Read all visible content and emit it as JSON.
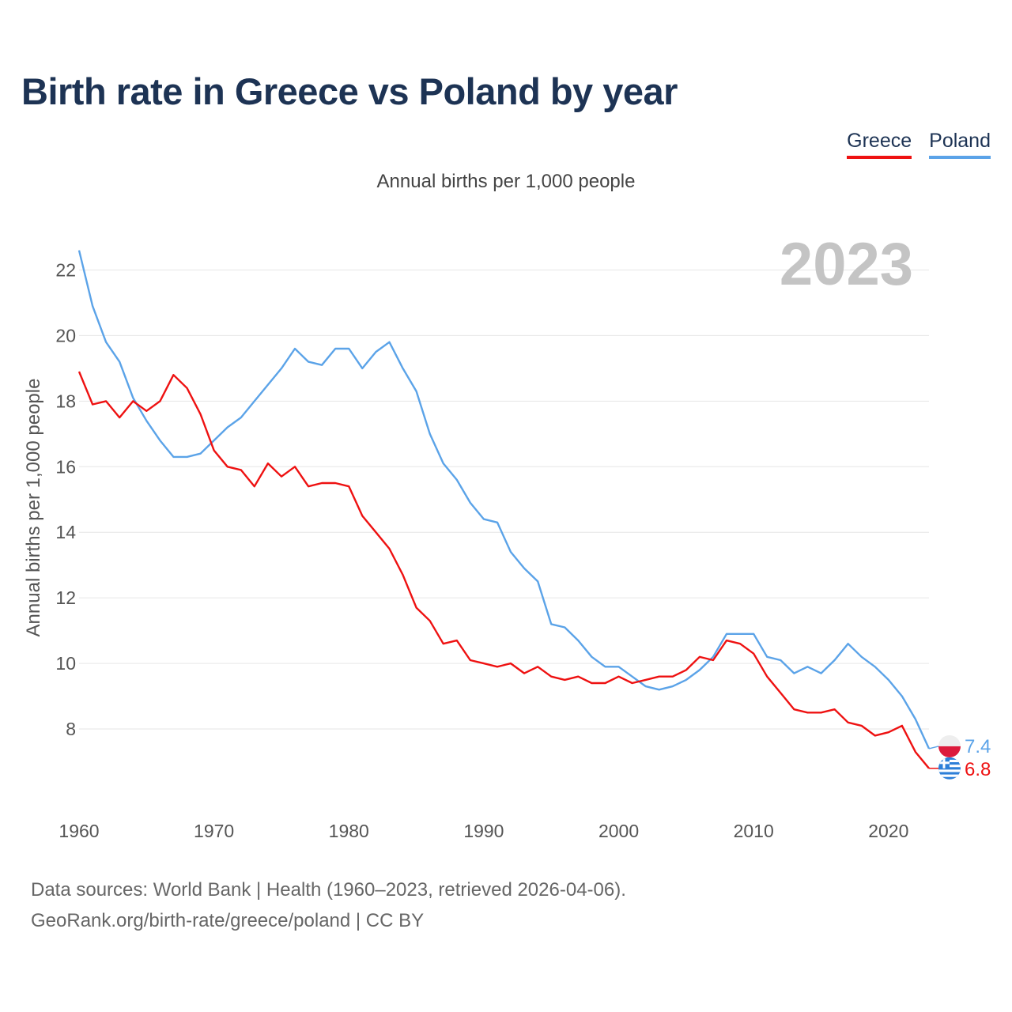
{
  "title": "Birth rate in Greece vs Poland by year",
  "subtitle": "Annual births per 1,000 people",
  "legend": [
    {
      "name": "Greece",
      "color": "#ee1111"
    },
    {
      "name": "Poland",
      "color": "#5ba3e8"
    }
  ],
  "year_label": "2023",
  "source_line1": "Data sources: World Bank | Health (1960–2023, retrieved 2026-04-06).",
  "source_line2": "GeoRank.org/birth-rate/greece/poland | CC BY",
  "chart_data": {
    "type": "line",
    "title": "Birth rate in Greece vs Poland by year",
    "xlabel": "",
    "ylabel": "Annual births per 1,000 people",
    "xlim": [
      1960,
      2023
    ],
    "ylim": [
      6.0,
      23.0
    ],
    "x_ticks": [
      1960,
      1970,
      1980,
      1990,
      2000,
      2010,
      2020
    ],
    "y_ticks": [
      8,
      10,
      12,
      14,
      16,
      18,
      20,
      22
    ],
    "grid": true,
    "x": [
      1960,
      1961,
      1962,
      1963,
      1964,
      1965,
      1966,
      1967,
      1968,
      1969,
      1970,
      1971,
      1972,
      1973,
      1974,
      1975,
      1976,
      1977,
      1978,
      1979,
      1980,
      1981,
      1982,
      1983,
      1984,
      1985,
      1986,
      1987,
      1988,
      1989,
      1990,
      1991,
      1992,
      1993,
      1994,
      1995,
      1996,
      1997,
      1998,
      1999,
      2000,
      2001,
      2002,
      2003,
      2004,
      2005,
      2006,
      2007,
      2008,
      2009,
      2010,
      2011,
      2012,
      2013,
      2014,
      2015,
      2016,
      2017,
      2018,
      2019,
      2020,
      2021,
      2022,
      2023
    ],
    "series": [
      {
        "name": "Greece",
        "color": "#ee1111",
        "end_label": "6.8",
        "values": [
          18.9,
          17.9,
          18.0,
          17.5,
          18.0,
          17.7,
          18.0,
          18.8,
          18.4,
          17.6,
          16.5,
          16.0,
          15.9,
          15.4,
          16.1,
          15.7,
          16.0,
          15.4,
          15.5,
          15.5,
          15.4,
          14.5,
          14.0,
          13.5,
          12.7,
          11.7,
          11.3,
          10.6,
          10.7,
          10.1,
          10.0,
          9.9,
          10.0,
          9.7,
          9.9,
          9.6,
          9.5,
          9.6,
          9.4,
          9.4,
          9.6,
          9.4,
          9.5,
          9.6,
          9.6,
          9.8,
          10.2,
          10.1,
          10.7,
          10.6,
          10.3,
          9.6,
          9.1,
          8.6,
          8.5,
          8.5,
          8.6,
          8.2,
          8.1,
          7.8,
          7.9,
          8.1,
          7.3,
          6.8
        ]
      },
      {
        "name": "Poland",
        "color": "#5ba3e8",
        "end_label": "7.4",
        "values": [
          22.6,
          20.9,
          19.8,
          19.2,
          18.1,
          17.4,
          16.8,
          16.3,
          16.3,
          16.4,
          16.8,
          17.2,
          17.5,
          18.0,
          18.5,
          19.0,
          19.6,
          19.2,
          19.1,
          19.6,
          19.6,
          19.0,
          19.5,
          19.8,
          19.0,
          18.3,
          17.0,
          16.1,
          15.6,
          14.9,
          14.4,
          14.3,
          13.4,
          12.9,
          12.5,
          11.2,
          11.1,
          10.7,
          10.2,
          9.9,
          9.9,
          9.6,
          9.3,
          9.2,
          9.3,
          9.5,
          9.8,
          10.2,
          10.9,
          10.9,
          10.9,
          10.2,
          10.1,
          9.7,
          9.9,
          9.7,
          10.1,
          10.6,
          10.2,
          9.9,
          9.5,
          9.0,
          8.3,
          7.4
        ]
      }
    ]
  }
}
